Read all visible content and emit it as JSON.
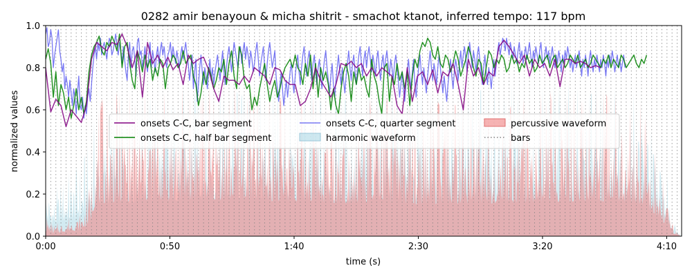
{
  "chart_data": {
    "type": "area",
    "title": "0282 amir benayoun & micha shitrit - smachot ktanot, inferred tempo: 117 bpm",
    "xlabel": "time (s)",
    "ylabel": "normalized values",
    "xlim": [
      0,
      256
    ],
    "ylim": [
      0,
      1.0
    ],
    "x_ticks": [
      {
        "value": 0,
        "label": "0:00"
      },
      {
        "value": 50,
        "label": "0:50"
      },
      {
        "value": 100,
        "label": "1:40"
      },
      {
        "value": 150,
        "label": "2:30"
      },
      {
        "value": 200,
        "label": "3:20"
      },
      {
        "value": 250,
        "label": "4:10"
      }
    ],
    "y_ticks": [
      {
        "value": 0.0,
        "label": "0.0"
      },
      {
        "value": 0.2,
        "label": "0.2"
      },
      {
        "value": 0.4,
        "label": "0.4"
      },
      {
        "value": 0.6,
        "label": "0.6"
      },
      {
        "value": 0.8,
        "label": "0.8"
      },
      {
        "value": 1.0,
        "label": "1.0"
      }
    ],
    "grid": false,
    "legend": {
      "placement": "center",
      "ncol": 3,
      "items": [
        {
          "label": "onsets C-C, bar segment",
          "kind": "line",
          "color": "#800080"
        },
        {
          "label": "onsets C-C, half bar segment",
          "kind": "line",
          "color": "#008000"
        },
        {
          "label": "onsets C-C, quarter segment",
          "kind": "line",
          "color": "#4b4bf0"
        },
        {
          "label": "harmonic waveform",
          "kind": "patch",
          "color": "#add8e6"
        },
        {
          "label": "percussive waveform",
          "kind": "patch",
          "color": "#f08080"
        },
        {
          "label": "bars",
          "kind": "dotted",
          "color": "#808080"
        }
      ]
    },
    "bars_period_s": 2.05,
    "series": [
      {
        "name": "onsets C-C, bar segment",
        "color": "#800080",
        "step": 2.05,
        "values": [
          0.8,
          0.59,
          0.65,
          0.62,
          0.52,
          0.6,
          0.57,
          0.54,
          0.62,
          0.84,
          0.92,
          0.9,
          0.88,
          0.92,
          0.91,
          0.96,
          0.9,
          0.8,
          0.88,
          0.66,
          0.92,
          0.82,
          0.86,
          0.8,
          0.85,
          0.79,
          0.82,
          0.72,
          0.86,
          0.82,
          0.84,
          0.85,
          0.79,
          0.7,
          0.64,
          0.76,
          0.74,
          0.74,
          0.72,
          0.76,
          0.73,
          0.8,
          0.78,
          0.76,
          0.72,
          0.8,
          0.79,
          0.74,
          0.72,
          0.72,
          0.62,
          0.64,
          0.7,
          0.8,
          0.74,
          0.7,
          0.66,
          0.72,
          0.82,
          0.81,
          0.83,
          0.8,
          0.82,
          0.76,
          0.8,
          0.76,
          0.8,
          0.78,
          0.76,
          0.62,
          0.58,
          0.8,
          0.64,
          0.76,
          0.78,
          0.72,
          0.79,
          0.68,
          0.78,
          0.76,
          0.82,
          0.72,
          0.6,
          0.84,
          0.76,
          0.8,
          0.72,
          0.78,
          0.76,
          0.9,
          0.93,
          0.9,
          0.86,
          0.82,
          0.86,
          0.76,
          0.84,
          0.8,
          0.82,
          0.76,
          0.84,
          0.71,
          0.84,
          0.84,
          0.82,
          0.83,
          0.82,
          0.8,
          0.81,
          0.8
        ]
      },
      {
        "name": "onsets C-C, half bar segment",
        "color": "#008000",
        "step": 1.025,
        "values": [
          0.84,
          0.89,
          0.82,
          0.66,
          0.78,
          0.62,
          0.72,
          0.68,
          0.6,
          0.66,
          0.56,
          0.62,
          0.7,
          0.6,
          0.66,
          0.58,
          0.64,
          0.78,
          0.86,
          0.9,
          0.92,
          0.95,
          0.88,
          0.86,
          0.92,
          0.9,
          0.95,
          0.92,
          0.88,
          0.96,
          0.8,
          0.9,
          0.92,
          0.82,
          0.74,
          0.7,
          0.88,
          0.84,
          0.78,
          0.86,
          0.8,
          0.84,
          0.74,
          0.8,
          0.76,
          0.84,
          0.82,
          0.7,
          0.8,
          0.82,
          0.86,
          0.84,
          0.8,
          0.82,
          0.88,
          0.82,
          0.84,
          0.86,
          0.76,
          0.72,
          0.62,
          0.68,
          0.78,
          0.72,
          0.8,
          0.76,
          0.7,
          0.74,
          0.8,
          0.78,
          0.84,
          0.72,
          0.82,
          0.88,
          0.76,
          0.7,
          0.9,
          0.86,
          0.74,
          0.7,
          0.72,
          0.6,
          0.66,
          0.62,
          0.7,
          0.76,
          0.82,
          0.72,
          0.64,
          0.7,
          0.74,
          0.66,
          0.7,
          0.76,
          0.8,
          0.82,
          0.84,
          0.8,
          0.86,
          0.8,
          0.78,
          0.72,
          0.82,
          0.76,
          0.86,
          0.7,
          0.82,
          0.66,
          0.8,
          0.74,
          0.78,
          0.72,
          0.6,
          0.7,
          0.62,
          0.58,
          0.7,
          0.78,
          0.82,
          0.76,
          0.64,
          0.78,
          0.72,
          0.8,
          0.74,
          0.76,
          0.7,
          0.66,
          0.84,
          0.76,
          0.72,
          0.64,
          0.58,
          0.8,
          0.82,
          0.64,
          0.76,
          0.72,
          0.82,
          0.74,
          0.78,
          0.7,
          0.78,
          0.62,
          0.76,
          0.84,
          0.8,
          0.88,
          0.92,
          0.9,
          0.94,
          0.92,
          0.86,
          0.84,
          0.9,
          0.82,
          0.8,
          0.86,
          0.84,
          0.78,
          0.82,
          0.88,
          0.84,
          0.76,
          0.8,
          0.84,
          0.9,
          0.86,
          0.8,
          0.76,
          0.84,
          0.82,
          0.72,
          0.8,
          0.88,
          0.86,
          0.8,
          0.84,
          0.82,
          0.86,
          0.84,
          0.78,
          0.8,
          0.86,
          0.82,
          0.84,
          0.78,
          0.82,
          0.8,
          0.86,
          0.82,
          0.84,
          0.78,
          0.8,
          0.86,
          0.82,
          0.84,
          0.86,
          0.8,
          0.84,
          0.86,
          0.8,
          0.82,
          0.84,
          0.8,
          0.82,
          0.86,
          0.84,
          0.82,
          0.86,
          0.8,
          0.82,
          0.84,
          0.8,
          0.82,
          0.86,
          0.84,
          0.82,
          0.8,
          0.84,
          0.82,
          0.86,
          0.8,
          0.84,
          0.82,
          0.8,
          0.86,
          0.84,
          0.8,
          0.82,
          0.84,
          0.86,
          0.82,
          0.8,
          0.84,
          0.82,
          0.86
        ]
      },
      {
        "name": "onsets C-C, quarter segment",
        "color": "#4b4bf0",
        "step": 0.5125,
        "values": [
          0.96,
          0.99,
          0.9,
          0.92,
          0.98,
          0.94,
          0.8,
          0.86,
          0.9,
          0.94,
          0.98,
          0.88,
          0.84,
          0.78,
          0.82,
          0.7,
          0.76,
          0.72,
          0.66,
          0.74,
          0.68,
          0.62,
          0.7,
          0.66,
          0.58,
          0.68,
          0.76,
          0.62,
          0.6,
          0.66,
          0.56,
          0.62,
          0.58,
          0.66,
          0.7,
          0.64,
          0.72,
          0.8,
          0.86,
          0.9,
          0.84,
          0.92,
          0.88,
          0.94,
          0.86,
          0.9,
          0.92,
          0.88,
          0.84,
          0.9,
          0.94,
          0.92,
          0.86,
          0.88,
          0.92,
          0.96,
          0.9,
          0.86,
          0.92,
          0.88,
          0.82,
          0.9,
          0.84,
          0.78,
          0.74,
          0.86,
          0.92,
          0.8,
          0.88,
          0.9,
          0.84,
          0.76,
          0.92,
          0.94,
          0.86,
          0.88,
          0.8,
          0.84,
          0.9,
          0.82,
          0.78,
          0.86,
          0.92,
          0.8,
          0.88,
          0.84,
          0.78,
          0.86,
          0.9,
          0.82,
          0.88,
          0.92,
          0.86,
          0.9,
          0.84,
          0.8,
          0.86,
          0.88,
          0.92,
          0.84,
          0.9,
          0.86,
          0.82,
          0.88,
          0.84,
          0.8,
          0.86,
          0.9,
          0.84,
          0.88,
          0.92,
          0.86,
          0.82,
          0.74,
          0.8,
          0.86,
          0.7,
          0.78,
          0.84,
          0.64,
          0.72,
          0.8,
          0.86,
          0.78,
          0.72,
          0.8,
          0.76,
          0.7,
          0.78,
          0.84,
          0.74,
          0.8,
          0.72,
          0.78,
          0.82,
          0.86,
          0.8,
          0.74,
          0.82,
          0.88,
          0.78,
          0.72,
          0.8,
          0.86,
          0.9,
          0.84,
          0.78,
          0.86,
          0.92,
          0.88,
          0.84,
          0.8,
          0.86,
          0.9,
          0.82,
          0.88,
          0.92,
          0.84,
          0.9,
          0.86,
          0.8,
          0.88,
          0.84,
          0.78,
          0.82,
          0.88,
          0.92,
          0.84,
          0.76,
          0.82,
          0.86,
          0.9,
          0.8,
          0.74,
          0.82,
          0.88,
          0.92,
          0.86,
          0.8,
          0.84,
          0.88,
          0.76,
          0.7,
          0.64,
          0.72,
          0.78,
          0.7,
          0.62,
          0.68,
          0.74,
          0.66,
          0.72,
          0.78,
          0.82,
          0.74,
          0.68,
          0.76,
          0.82,
          0.86,
          0.78,
          0.72,
          0.8,
          0.86,
          0.9,
          0.82,
          0.76,
          0.84,
          0.88,
          0.8,
          0.74,
          0.82,
          0.86,
          0.78,
          0.72,
          0.8,
          0.84,
          0.76,
          0.7,
          0.78,
          0.84,
          0.88,
          0.8,
          0.74,
          0.68,
          0.76,
          0.82,
          0.72,
          0.66,
          0.74,
          0.8,
          0.86,
          0.78,
          0.72,
          0.8,
          0.74,
          0.68,
          0.76,
          0.82,
          0.88,
          0.8,
          0.74,
          0.82,
          0.86,
          0.78,
          0.72,
          0.8,
          0.86,
          0.9,
          0.82,
          0.76,
          0.84,
          0.88,
          0.8,
          0.86,
          0.9,
          0.84,
          0.78,
          0.86,
          0.82,
          0.76,
          0.84,
          0.88,
          0.8,
          0.74,
          0.82,
          0.86,
          0.78,
          0.84,
          0.88,
          0.82,
          0.76,
          0.84,
          0.8,
          0.74,
          0.82,
          0.86,
          0.8,
          0.74,
          0.66,
          0.72,
          0.78,
          0.7,
          0.64,
          0.72,
          0.78,
          0.84,
          0.76,
          0.7,
          0.78,
          0.84,
          0.72,
          0.66,
          0.74,
          0.8,
          0.86,
          0.78,
          0.72,
          0.8,
          0.74,
          0.68,
          0.76,
          0.82,
          0.88,
          0.8,
          0.74,
          0.82,
          0.78,
          0.72,
          0.8,
          0.86,
          0.8,
          0.74,
          0.68,
          0.76,
          0.7,
          0.64,
          0.72,
          0.78,
          0.84,
          0.76,
          0.7,
          0.78,
          0.84,
          0.8,
          0.74,
          0.82,
          0.88,
          0.8,
          0.86,
          0.9,
          0.84,
          0.78,
          0.86,
          0.92,
          0.86,
          0.8,
          0.88,
          0.84,
          0.78,
          0.86,
          0.9,
          0.84,
          0.78,
          0.72,
          0.8,
          0.86,
          0.78,
          0.72,
          0.8,
          0.76,
          0.7,
          0.78,
          0.84,
          0.76,
          0.82,
          0.88,
          0.92,
          0.86,
          0.9,
          0.94,
          0.92,
          0.88,
          0.94,
          0.9,
          0.86,
          0.92,
          0.88,
          0.84,
          0.9,
          0.86,
          0.82,
          0.88,
          0.92,
          0.84,
          0.88,
          0.82,
          0.86,
          0.9,
          0.84,
          0.88,
          0.92,
          0.86,
          0.8,
          0.88,
          0.84,
          0.9,
          0.86,
          0.82,
          0.88,
          0.92,
          0.84,
          0.8,
          0.86,
          0.9,
          0.84,
          0.88,
          0.82,
          0.86,
          0.9,
          0.84,
          0.8,
          0.86,
          0.82,
          0.88,
          0.84,
          0.78,
          0.86,
          0.82,
          0.88,
          0.84,
          0.9,
          0.86,
          0.8,
          0.84,
          0.78,
          0.82,
          0.86,
          0.8,
          0.84,
          0.88,
          0.82,
          0.76,
          0.84,
          0.8,
          0.86,
          0.82,
          0.76,
          0.84,
          0.88,
          0.82,
          0.78,
          0.84,
          0.8,
          0.86,
          0.82,
          0.78,
          0.84,
          0.8,
          0.86,
          0.82,
          0.76,
          0.84,
          0.8,
          0.86,
          0.82,
          0.88,
          0.84,
          0.78,
          0.82,
          0.86,
          0.8,
          0.84,
          0.78,
          0.82,
          0.86,
          0.8
        ]
      }
    ],
    "waveforms": [
      {
        "name": "harmonic waveform",
        "color": "#add8e6",
        "envelope_time": [
          0,
          3,
          8,
          10,
          14,
          18,
          20,
          30,
          60,
          100,
          120,
          140,
          150,
          180,
          200,
          230,
          240,
          245,
          250,
          252,
          254,
          256
        ],
        "envelope_value": [
          0.25,
          0.2,
          0.28,
          0.3,
          0.32,
          0.45,
          0.55,
          0.62,
          0.68,
          0.68,
          0.65,
          0.7,
          0.66,
          0.68,
          0.7,
          0.7,
          0.66,
          0.48,
          0.3,
          0.12,
          0.05,
          0.0
        ]
      },
      {
        "name": "percussive waveform",
        "color": "#f08080",
        "envelope_time": [
          0,
          3,
          8,
          10,
          14,
          18,
          20,
          30,
          60,
          100,
          120,
          140,
          150,
          180,
          200,
          230,
          240,
          245,
          250,
          252,
          254,
          256
        ],
        "envelope_value": [
          0.1,
          0.05,
          0.08,
          0.1,
          0.1,
          0.25,
          0.6,
          0.65,
          0.68,
          0.66,
          0.62,
          0.62,
          0.6,
          0.62,
          0.64,
          0.66,
          0.6,
          0.4,
          0.2,
          0.06,
          0.02,
          0.0
        ]
      }
    ]
  }
}
